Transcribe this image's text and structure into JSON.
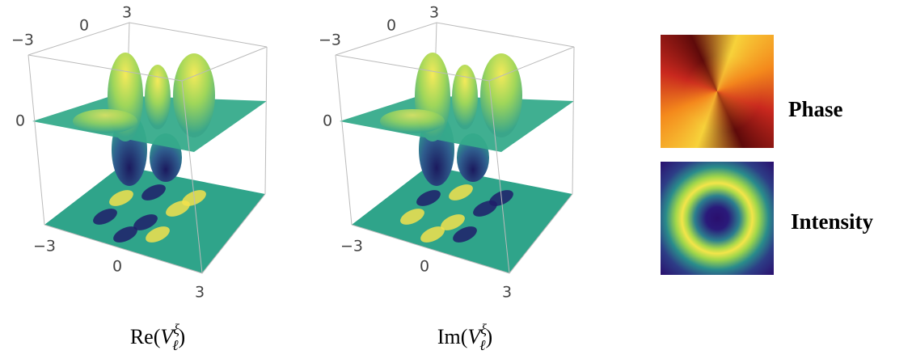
{
  "panels": [
    {
      "top_ticks": [
        "−3",
        "0",
        "3"
      ],
      "z_tick": "0",
      "bottom_ticks": [
        "−3",
        "0",
        "3"
      ],
      "caption": {
        "prefix": "Re(",
        "base": "V",
        "sub": "ℓ",
        "sup": "ξ",
        "suffix": ")"
      }
    },
    {
      "top_ticks": [
        "−3",
        "0",
        "3"
      ],
      "z_tick": "0",
      "bottom_ticks": [
        "−3",
        "0",
        "3"
      ],
      "caption": {
        "prefix": "Im(",
        "base": "V",
        "sub": "ℓ",
        "sup": "ξ",
        "suffix": ")"
      }
    }
  ],
  "insets": [
    {
      "label": "Phase"
    },
    {
      "label": "Intensity"
    }
  ]
}
